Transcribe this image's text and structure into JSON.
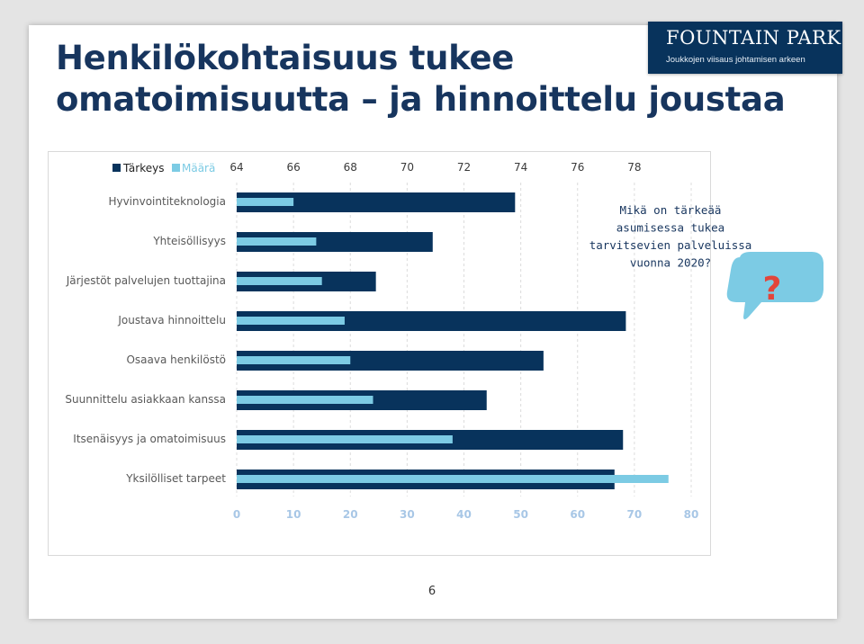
{
  "slide": {
    "title_line1": "Henkilökohtaisuus tukee",
    "title_line2": "omatoimisuutta – ja hinnoittelu joustaa",
    "page_number": "6"
  },
  "logo": {
    "brand": "FOUNTAIN PARK",
    "tagline": "Joukkojen viisaus johtamisen arkeen"
  },
  "colors": {
    "title": "#17355e",
    "tarkeys": "#08335c",
    "maara": "#7ccbe4",
    "bottom_axis": "#a8c7e6",
    "bubble": "#7ccbe4",
    "question_mark": "#e2453a"
  },
  "callout": {
    "lines": [
      "Mikä on tärkeää",
      "asumisessa tukea",
      "tarvitsevien palveluissa",
      "vuonna 2020?"
    ],
    "icon": "question-speech-bubble-icon",
    "symbol": "?"
  },
  "chart_data": {
    "type": "bar",
    "orientation": "horizontal",
    "categories": [
      "Hyvinvointiteknologia",
      "Yhteisöllisyys",
      "Järjestöt palvelujen tuottajina",
      "Joustava hinnoittelu",
      "Osaava henkilöstö",
      "Suunnittelu asiakkaan kanssa",
      "Itsenäisyys ja omatoimisuus",
      "Yksilölliset tarpeet"
    ],
    "series": [
      {
        "name": "Tärkeys",
        "axis": "top",
        "values": [
          73.8,
          70.9,
          68.9,
          77.7,
          74.8,
          72.8,
          77.6,
          77.3
        ]
      },
      {
        "name": "Määrä",
        "axis": "bottom",
        "values": [
          10,
          14,
          15,
          19,
          20,
          24,
          38,
          76
        ]
      }
    ],
    "top_axis": {
      "range": [
        64,
        80
      ],
      "ticks": [
        "64",
        "66",
        "68",
        "70",
        "72",
        "74",
        "76",
        "78"
      ]
    },
    "bottom_axis": {
      "range": [
        0,
        80
      ],
      "ticks": [
        "0",
        "10",
        "20",
        "30",
        "40",
        "50",
        "60",
        "70",
        "80"
      ]
    },
    "legend": {
      "placement": "top-left"
    },
    "gridlines": "vertical-dashed"
  }
}
